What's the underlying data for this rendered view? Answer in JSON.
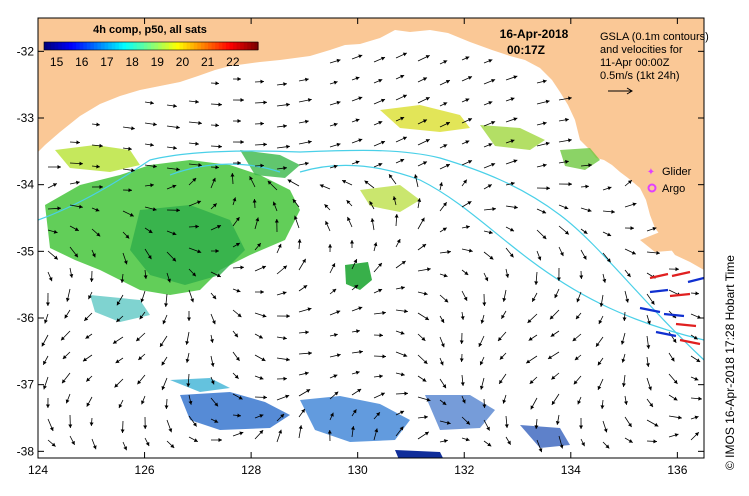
{
  "colorbar": {
    "title": "4h comp, p50, all sats",
    "ticks": [
      "15",
      "16",
      "17",
      "18",
      "19",
      "20",
      "21",
      "22"
    ],
    "range": [
      14.5,
      23
    ]
  },
  "date": {
    "line1": "16-Apr-2018",
    "line2": "00:17Z"
  },
  "gsla_note": {
    "line1": "GSLA (0.1m contours)",
    "line2": "and velocities for",
    "line3": "11-Apr 00:00Z",
    "line4": "0.5m/s (1kt 24h)"
  },
  "legend": {
    "glider_label": "Glider",
    "argo_label": "Argo",
    "glider_color": "#e040ff",
    "argo_color": "#e040ff"
  },
  "axes": {
    "x_ticks": [
      "124",
      "126",
      "128",
      "130",
      "132",
      "134",
      "136"
    ],
    "y_ticks": [
      "-32",
      "-33",
      "-34",
      "-35",
      "-36",
      "-37",
      "-38"
    ],
    "lon_range": [
      124,
      136.5
    ],
    "lat_range": [
      -31.5,
      -38.1
    ]
  },
  "credit": "© IMOS 16-Apr-2018 17:28 Hobart Time",
  "colors": {
    "land": "#fac896",
    "contour": "#4ad0e8",
    "arrow": "#000000"
  }
}
